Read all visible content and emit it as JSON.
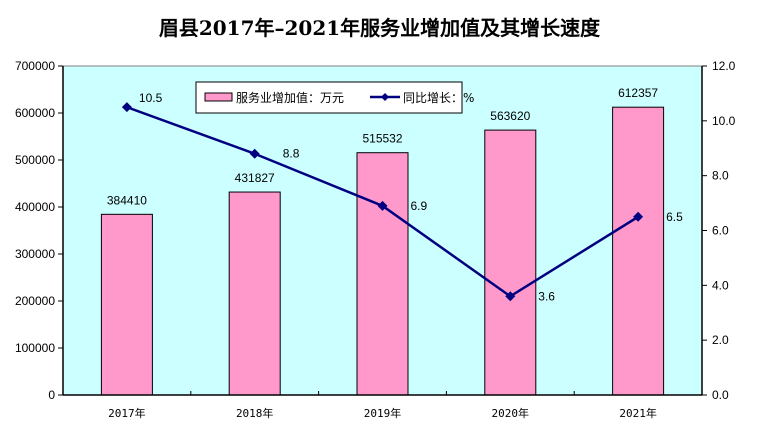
{
  "chart_data": {
    "type": "bar",
    "title": "眉县2017年–2021年服务业增加值及其增长速度",
    "categories": [
      "2017年",
      "2018年",
      "2019年",
      "2020年",
      "2021年"
    ],
    "series": [
      {
        "name": "服务业增加值：万元",
        "type": "bar",
        "axis": "left",
        "color": "#ff99cc",
        "values": [
          384410,
          431827,
          515532,
          563620,
          612357
        ],
        "labels": [
          "384410",
          "431827",
          "515532",
          "563620",
          "612357"
        ]
      },
      {
        "name": "同比增长：%",
        "type": "line",
        "axis": "right",
        "color": "#000080",
        "marker": "diamond",
        "values": [
          10.5,
          8.8,
          6.9,
          3.6,
          6.5
        ],
        "labels": [
          "10.5",
          "8.8",
          "6.9",
          "3.6",
          "6.5"
        ]
      }
    ],
    "y_left": {
      "range": [
        0,
        700000
      ],
      "ticks": [
        0,
        100000,
        200000,
        300000,
        400000,
        500000,
        600000,
        700000
      ],
      "tick_labels": [
        "0",
        "100000",
        "200000",
        "300000",
        "400000",
        "500000",
        "600000",
        "700000"
      ]
    },
    "y_right": {
      "range": [
        0,
        12
      ],
      "ticks": [
        0,
        2,
        4,
        6,
        8,
        10,
        12
      ],
      "tick_labels": [
        "0.0",
        "2.0",
        "4.0",
        "6.0",
        "8.0",
        "10.0",
        "12.0"
      ]
    },
    "xlabel": "",
    "ylabel": "",
    "grid": false,
    "legend_position": "top-center",
    "plot_background": "#ccffff"
  }
}
